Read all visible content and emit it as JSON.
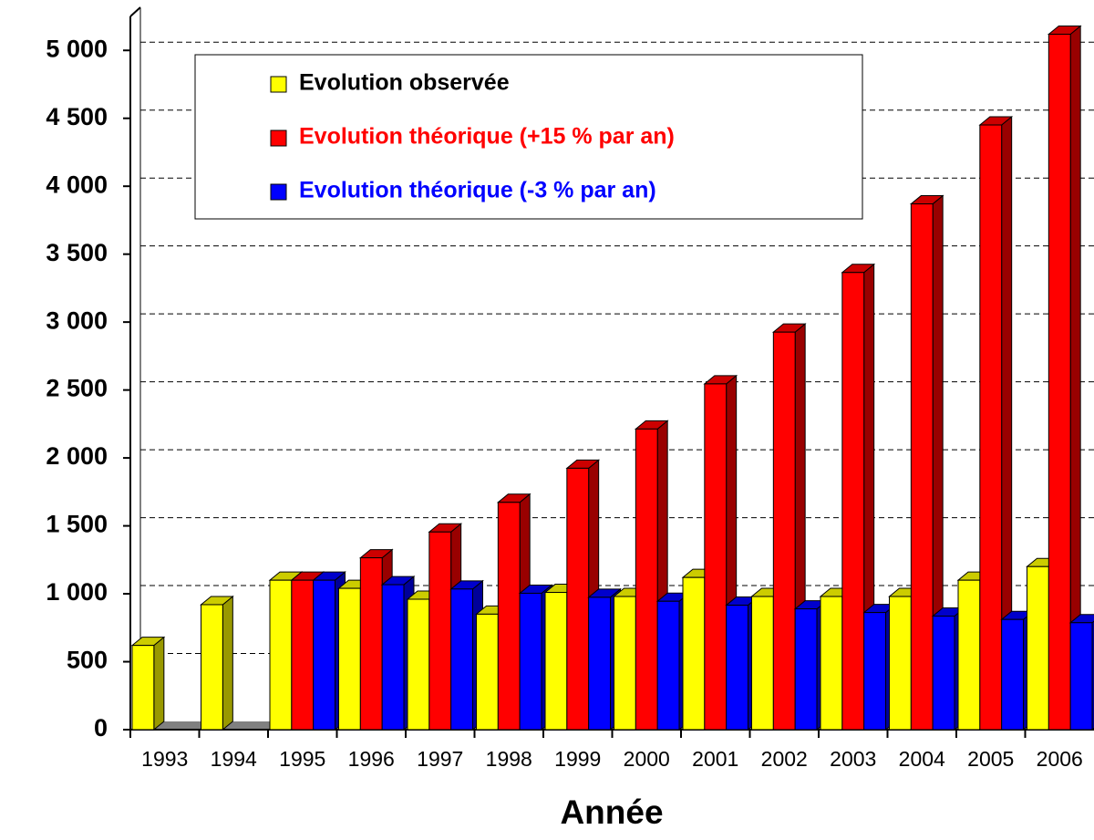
{
  "chart_data": {
    "type": "bar3d",
    "x_label": "Année",
    "categories": [
      "1993",
      "1994",
      "1995",
      "1996",
      "1997",
      "1998",
      "1999",
      "2000",
      "2001",
      "2002",
      "2003",
      "2004",
      "2005",
      "2006"
    ],
    "series": [
      {
        "name": "Evolution observée",
        "color": "#ffff00",
        "values": [
          620,
          920,
          1100,
          1040,
          960,
          850,
          1010,
          980,
          1120,
          980,
          980,
          980,
          1100,
          1200
        ]
      },
      {
        "name": "Evolution théorique (+15 % par an)",
        "color": "#ff0000",
        "values": [
          null,
          null,
          1100,
          1265,
          1455,
          1673,
          1924,
          2213,
          2545,
          2926,
          3365,
          3870,
          4451,
          5119
        ]
      },
      {
        "name": "Evolution théorique (-3 % par an)",
        "color": "#0000ff",
        "values": [
          null,
          null,
          1100,
          1067,
          1035,
          1004,
          974,
          945,
          916,
          889,
          862,
          836,
          811,
          787
        ]
      }
    ],
    "ylim": [
      0,
      5250
    ],
    "yticks": [
      0,
      500,
      {
        "value": 1000,
        "label": "1 000"
      },
      {
        "value": 1500,
        "label": "1 500"
      },
      {
        "value": 2000,
        "label": "2 000"
      },
      {
        "value": 2500,
        "label": "2 500"
      },
      {
        "value": 3000,
        "label": "3 000"
      },
      {
        "value": 3500,
        "label": "3 500"
      },
      {
        "value": 4000,
        "label": "4 000"
      },
      {
        "value": 4500,
        "label": "4 500"
      },
      {
        "value": 5000,
        "label": "5 000"
      }
    ],
    "grid": true
  }
}
